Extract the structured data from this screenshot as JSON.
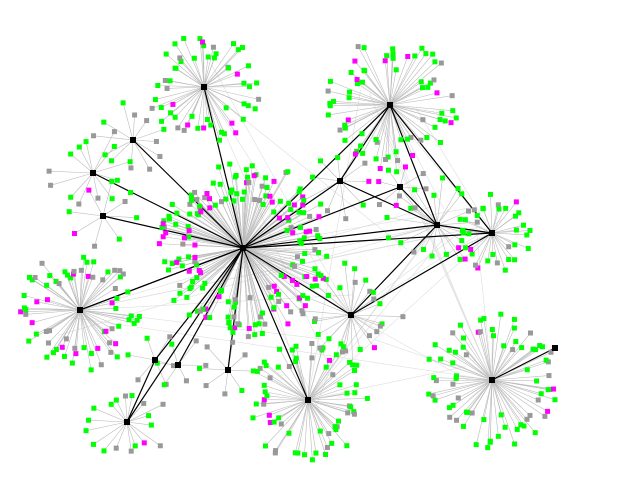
{
  "diagram": {
    "type": "network-graph",
    "background": "#ffffff",
    "colors": {
      "hub_node": "#000000",
      "leaf_green": "#00ff00",
      "leaf_gray": "#999999",
      "leaf_magenta": "#ff00ff",
      "spoke_edge": "#bbbbbb",
      "hub_edge": "#000000"
    },
    "node_shape": "square",
    "labels_shown": false
  }
}
